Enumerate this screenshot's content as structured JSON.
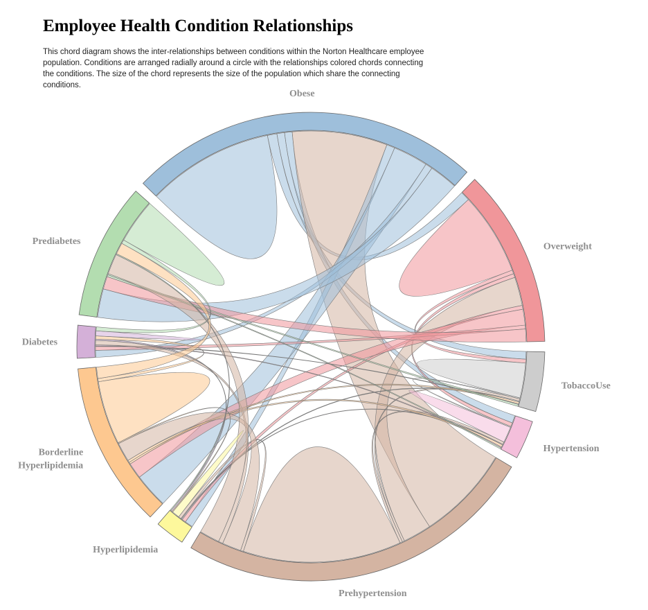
{
  "title": "Employee Health Condition Relationships",
  "description": "This chord diagram shows the inter-relationships between conditions within the Norton Healthcare employee population. Conditions are arranged radially around a circle with the relationships colored chords connecting the conditions. The size of the chord represents the size of the population which share the connecting conditions.",
  "chart_data": {
    "type": "chord",
    "groups": [
      {
        "name": "Obese",
        "label_lines": [
          "Obese"
        ],
        "color": "#9ebfdb"
      },
      {
        "name": "Overweight",
        "label_lines": [
          "Overweight"
        ],
        "color": "#f0969a"
      },
      {
        "name": "TobaccoUse",
        "label_lines": [
          "TobaccoUse"
        ],
        "color": "#cdcdcd"
      },
      {
        "name": "Hypertension",
        "label_lines": [
          "Hypertension"
        ],
        "color": "#f4bfdb"
      },
      {
        "name": "Prehypertension",
        "label_lines": [
          "Prehypertension"
        ],
        "color": "#d4b4a2"
      },
      {
        "name": "Hyperlipidemia",
        "label_lines": [
          "Hyperlipidemia"
        ],
        "color": "#fdf89c"
      },
      {
        "name": "Borderline Hyperlipidemia",
        "label_lines": [
          "Borderline",
          "Hyperlipidemia"
        ],
        "color": "#fdc890"
      },
      {
        "name": "Diabetes",
        "label_lines": [
          "Diabetes"
        ],
        "color": "#d4b0d8"
      },
      {
        "name": "Prediabetes",
        "label_lines": [
          "Prediabetes"
        ],
        "color": "#b3ddb0"
      }
    ],
    "matrix": [
      [
        2000,
        150,
        120,
        120,
        1500,
        130,
        550,
        110,
        450
      ],
      [
        150,
        1300,
        60,
        60,
        450,
        60,
        250,
        60,
        200
      ],
      [
        120,
        60,
        550,
        15,
        35,
        15,
        30,
        10,
        30
      ],
      [
        120,
        60,
        15,
        250,
        40,
        10,
        35,
        15,
        20
      ],
      [
        1500,
        450,
        35,
        40,
        2500,
        45,
        300,
        70,
        320
      ],
      [
        130,
        60,
        15,
        10,
        45,
        120,
        15,
        20,
        15
      ],
      [
        550,
        250,
        30,
        35,
        300,
        15,
        1000,
        50,
        180
      ],
      [
        110,
        60,
        10,
        15,
        70,
        20,
        50,
        80,
        60
      ],
      [
        450,
        200,
        30,
        20,
        320,
        15,
        180,
        60,
        700
      ]
    ]
  }
}
